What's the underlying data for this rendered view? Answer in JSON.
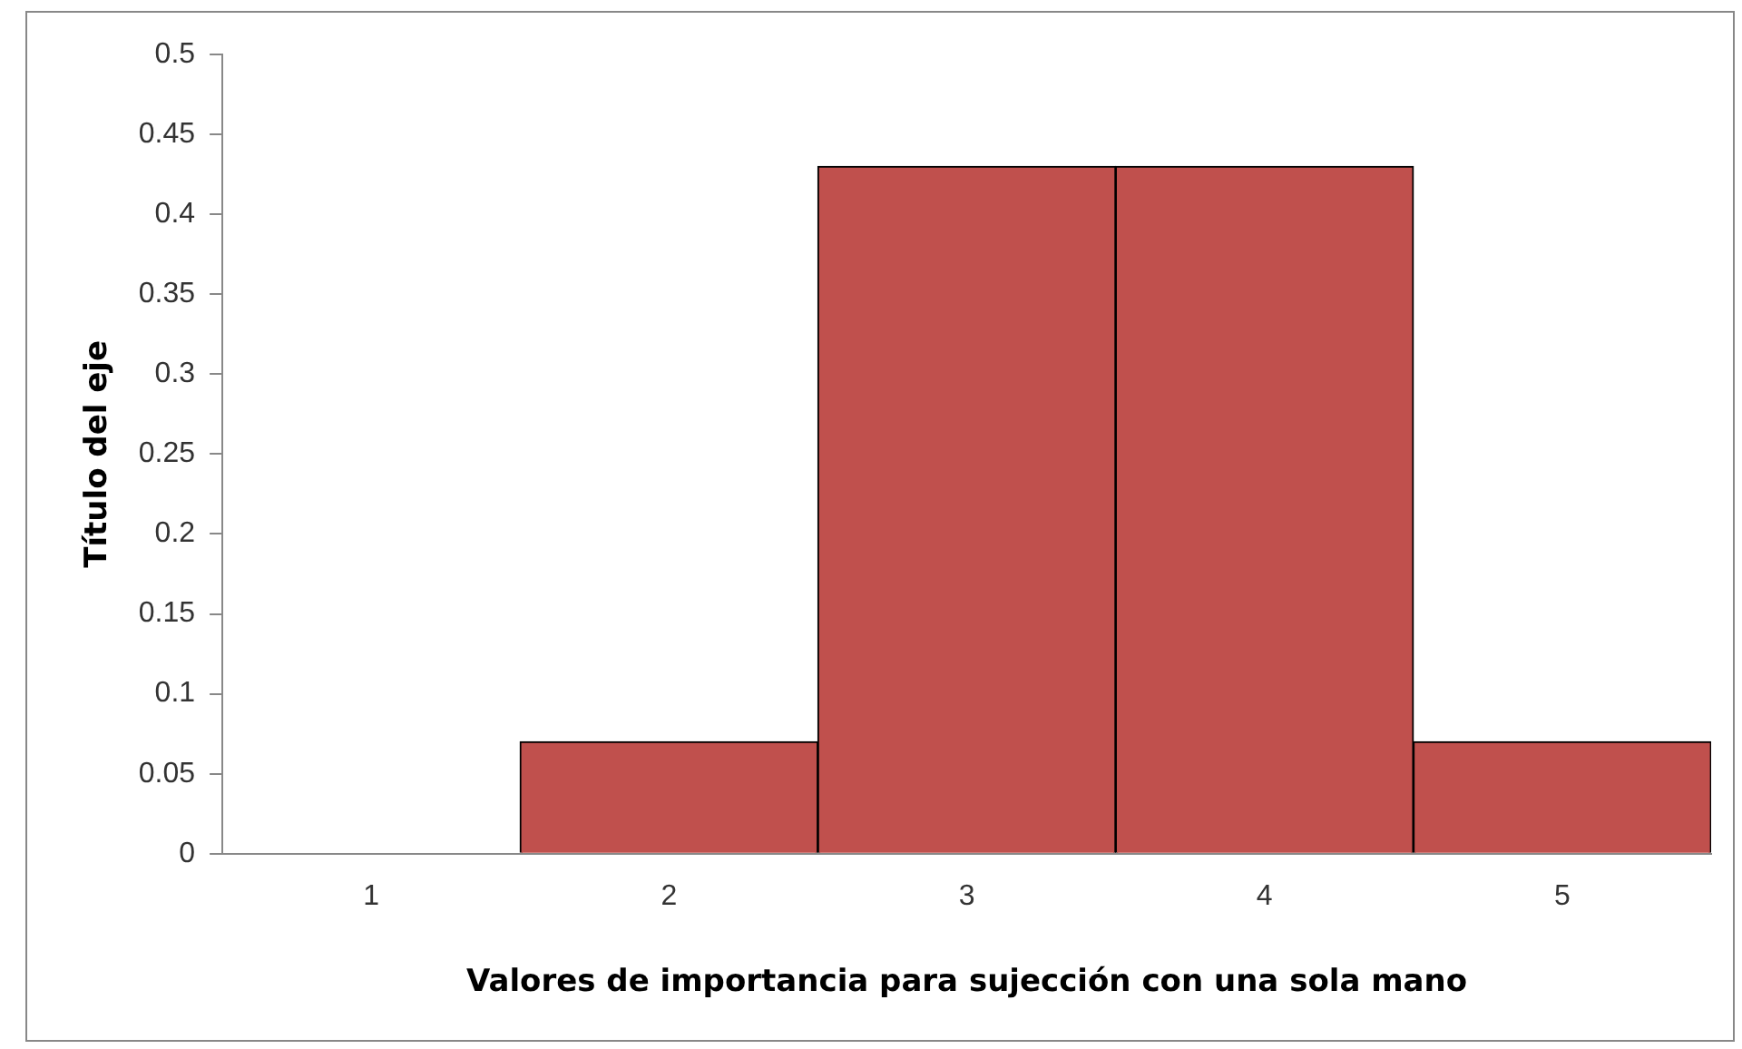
{
  "chart_data": {
    "type": "bar",
    "xlabel": "Valores de importancia para sujección con una sola mano",
    "ylabel": "Título del eje",
    "categories": [
      "1",
      "2",
      "3",
      "4",
      "5"
    ],
    "values": [
      0,
      0.07,
      0.43,
      0.43,
      0.07
    ],
    "color": "#c0504d",
    "ylim": [
      0,
      0.5
    ],
    "yticks": [
      0,
      0.05,
      0.1,
      0.15,
      0.2,
      0.25,
      0.3,
      0.35,
      0.4,
      0.45,
      0.5
    ],
    "grid": false,
    "legend": false
  }
}
